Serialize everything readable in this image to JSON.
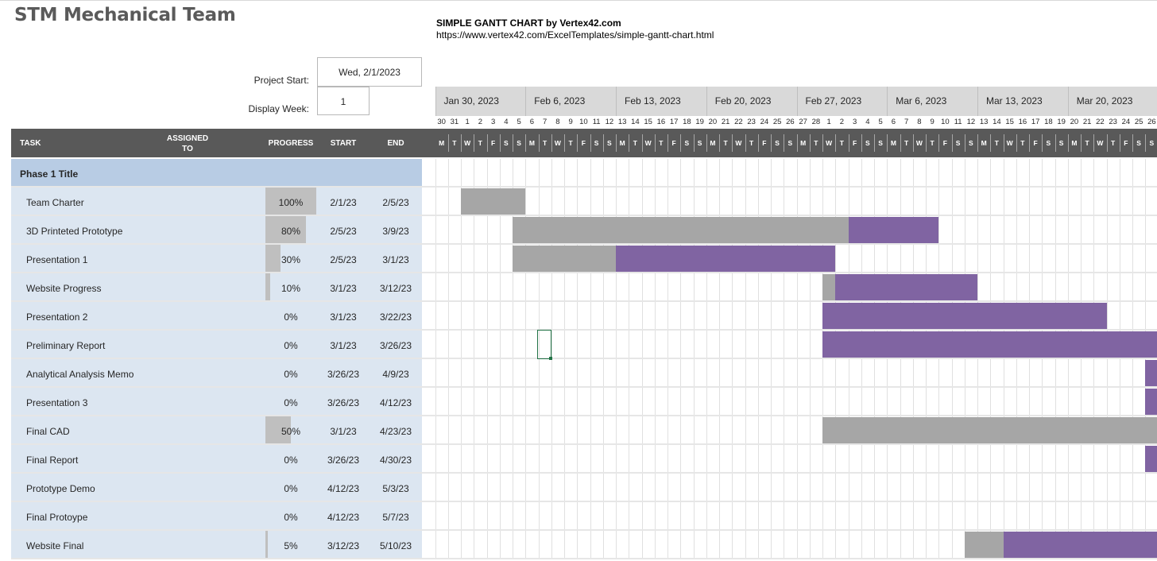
{
  "title": "STM Mechanical Team",
  "credit": {
    "title": "SIMPLE GANTT CHART by Vertex42.com",
    "url": "https://www.vertex42.com/ExcelTemplates/simple-gantt-chart.html"
  },
  "project_start": {
    "label": "Project Start:",
    "value": "Wed, 2/1/2023"
  },
  "display_week": {
    "label": "Display Week:",
    "value": "1"
  },
  "columns": {
    "task": "TASK",
    "assigned_1": "ASSIGNED",
    "assigned_2": "TO",
    "progress": "PROGRESS",
    "start": "START",
    "end": "END"
  },
  "weeks": [
    "Jan 30, 2023",
    "Feb 6, 2023",
    "Feb 13, 2023",
    "Feb 20, 2023",
    "Feb 27, 2023",
    "Mar 6, 2023",
    "Mar 13, 2023",
    "Mar 20, 2023"
  ],
  "day_numbers": [
    "30",
    "31",
    "1",
    "2",
    "3",
    "4",
    "5",
    "6",
    "7",
    "8",
    "9",
    "10",
    "11",
    "12",
    "13",
    "14",
    "15",
    "16",
    "17",
    "18",
    "19",
    "20",
    "21",
    "22",
    "23",
    "24",
    "25",
    "26",
    "27",
    "28",
    "1",
    "2",
    "3",
    "4",
    "5",
    "6",
    "7",
    "8",
    "9",
    "10",
    "11",
    "12",
    "13",
    "14",
    "15",
    "16",
    "17",
    "18",
    "19",
    "20",
    "21",
    "22",
    "23",
    "24",
    "25",
    "26"
  ],
  "day_letters": [
    "M",
    "T",
    "W",
    "T",
    "F",
    "S",
    "S"
  ],
  "phase": "Phase 1 Title",
  "tasks": [
    {
      "name": "Team Charter",
      "progress": "100%",
      "progress_value": 1.0,
      "start": "2/1/23",
      "end": "2/5/23",
      "start_day": 2,
      "end_day": 6
    },
    {
      "name": "3D Printeted Prototype",
      "progress": "80%",
      "progress_value": 0.8,
      "start": "2/5/23",
      "end": "3/9/23",
      "start_day": 6,
      "end_day": 38
    },
    {
      "name": "Presentation 1",
      "progress": "30%",
      "progress_value": 0.3,
      "start": "2/5/23",
      "end": "3/1/23",
      "start_day": 6,
      "end_day": 30
    },
    {
      "name": "Website Progress",
      "progress": "10%",
      "progress_value": 0.1,
      "start": "3/1/23",
      "end": "3/12/23",
      "start_day": 30,
      "end_day": 41
    },
    {
      "name": "Presentation 2",
      "progress": "0%",
      "progress_value": 0,
      "start": "3/1/23",
      "end": "3/22/23",
      "start_day": 30,
      "end_day": 51
    },
    {
      "name": "Preliminary Report",
      "progress": "0%",
      "progress_value": 0,
      "start": "3/1/23",
      "end": "3/26/23",
      "start_day": 30,
      "end_day": 55
    },
    {
      "name": "Analytical Analysis Memo",
      "progress": "0%",
      "progress_value": 0,
      "start": "3/26/23",
      "end": "4/9/23",
      "start_day": 55,
      "end_day": 69
    },
    {
      "name": "Presentation 3",
      "progress": "0%",
      "progress_value": 0,
      "start": "3/26/23",
      "end": "4/12/23",
      "start_day": 55,
      "end_day": 72
    },
    {
      "name": "Final CAD",
      "progress": "50%",
      "progress_value": 0.5,
      "start": "3/1/23",
      "end": "4/23/23",
      "start_day": 30,
      "end_day": 83
    },
    {
      "name": "Final Report",
      "progress": "0%",
      "progress_value": 0,
      "start": "3/26/23",
      "end": "4/30/23",
      "start_day": 55,
      "end_day": 90
    },
    {
      "name": "Prototype Demo",
      "progress": "0%",
      "progress_value": 0,
      "start": "4/12/23",
      "end": "5/3/23",
      "start_day": 72,
      "end_day": 93
    },
    {
      "name": "Final Protoype",
      "progress": "0%",
      "progress_value": 0,
      "start": "4/12/23",
      "end": "5/7/23",
      "start_day": 72,
      "end_day": 97
    },
    {
      "name": "Website Final",
      "progress": "5%",
      "progress_value": 0.05,
      "start": "3/12/23",
      "end": "5/10/23",
      "start_day": 41,
      "end_day": 100
    }
  ],
  "colors": {
    "done": "#a6a6a6",
    "remaining": "#8064a2",
    "header": "#595959",
    "row": "#dce6f1",
    "phase": "#b8cce4"
  }
}
